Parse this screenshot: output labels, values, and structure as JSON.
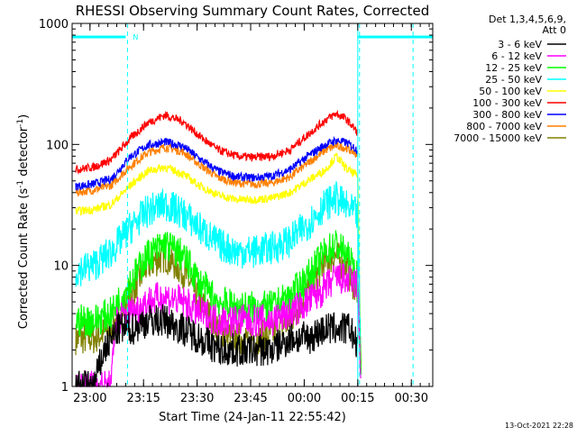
{
  "chart_data": {
    "type": "line",
    "title": "RHESSI Observing Summary Count Rates, Corrected",
    "xlabel": "Start Time (24-Jan-11 22:55:42)",
    "ylabel": "Corrected Count Rate (s",
    "ylabel_sup1": "-1",
    "ylabel_mid": " detector",
    "ylabel_sup2": "-1",
    "ylabel_end": ")",
    "yscale": "log",
    "ylim": [
      1,
      1000
    ],
    "xlim_minutes_after_2255": [
      0,
      101
    ],
    "x_ticks": [
      {
        "label": "23:00",
        "minutes": 5
      },
      {
        "label": "23:15",
        "minutes": 20
      },
      {
        "label": "23:30",
        "minutes": 35
      },
      {
        "label": "23:45",
        "minutes": 50
      },
      {
        "label": "00:00",
        "minutes": 65
      },
      {
        "label": "00:15",
        "minutes": 80
      },
      {
        "label": "00:30",
        "minutes": 95
      }
    ],
    "y_ticks": [
      {
        "label": "1",
        "value": 1
      },
      {
        "label": "10",
        "value": 10
      },
      {
        "label": "100",
        "value": 100
      },
      {
        "label": "1000",
        "value": 1000
      }
    ],
    "legend_header": [
      "Det 1,3,4,5,6,9,",
      "Att 0"
    ],
    "footer_date": "13-Oct-2021 22:28",
    "night_marker_label": "N",
    "night_bars": [
      [
        0,
        15
      ],
      [
        80,
        101
      ]
    ],
    "dashed_lines_minutes": [
      15.5,
      80.5,
      95.5
    ],
    "series": [
      {
        "name": "3 - 6 keV",
        "color": "#000000",
        "values_at": [
          [
            1,
            1
          ],
          [
            6,
            1
          ],
          [
            9,
            2
          ],
          [
            13,
            3
          ],
          [
            17,
            3
          ],
          [
            21,
            3.5
          ],
          [
            26,
            3.5
          ],
          [
            31,
            3
          ],
          [
            36,
            2.5
          ],
          [
            41,
            2
          ],
          [
            46,
            2
          ],
          [
            51,
            2
          ],
          [
            56,
            2
          ],
          [
            61,
            2.5
          ],
          [
            66,
            2.5
          ],
          [
            71,
            3
          ],
          [
            76,
            3
          ],
          [
            78,
            3
          ],
          [
            80,
            2
          ]
        ]
      },
      {
        "name": "6 - 12 keV",
        "color": "#ff00ff",
        "values_at": [
          [
            1,
            1
          ],
          [
            11,
            1
          ],
          [
            12,
            3.5
          ],
          [
            16,
            4
          ],
          [
            21,
            5
          ],
          [
            26,
            5.5
          ],
          [
            31,
            5
          ],
          [
            36,
            4
          ],
          [
            41,
            3.5
          ],
          [
            46,
            3.5
          ],
          [
            51,
            3.5
          ],
          [
            56,
            3.5
          ],
          [
            61,
            4
          ],
          [
            66,
            5
          ],
          [
            71,
            6.5
          ],
          [
            74,
            8
          ],
          [
            77,
            7.5
          ],
          [
            80,
            7
          ],
          [
            81,
            1
          ]
        ]
      },
      {
        "name": "12 - 25 keV",
        "color": "#00ff00",
        "values_at": [
          [
            1,
            3.5
          ],
          [
            6,
            3.5
          ],
          [
            11,
            4
          ],
          [
            16,
            7
          ],
          [
            21,
            12
          ],
          [
            26,
            15
          ],
          [
            31,
            12
          ],
          [
            36,
            7
          ],
          [
            41,
            5
          ],
          [
            46,
            4.5
          ],
          [
            51,
            4.5
          ],
          [
            56,
            4.5
          ],
          [
            61,
            5.5
          ],
          [
            66,
            8
          ],
          [
            71,
            13
          ],
          [
            74,
            15
          ],
          [
            77,
            12
          ],
          [
            80,
            8
          ],
          [
            81,
            1
          ]
        ]
      },
      {
        "name": "25 - 50 keV",
        "color": "#00ffff",
        "values_at": [
          [
            1,
            9
          ],
          [
            6,
            10
          ],
          [
            11,
            13
          ],
          [
            16,
            20
          ],
          [
            21,
            28
          ],
          [
            26,
            32
          ],
          [
            31,
            27
          ],
          [
            36,
            20
          ],
          [
            41,
            15
          ],
          [
            46,
            13
          ],
          [
            51,
            13
          ],
          [
            56,
            14
          ],
          [
            61,
            16
          ],
          [
            66,
            22
          ],
          [
            71,
            32
          ],
          [
            74,
            36
          ],
          [
            77,
            30
          ],
          [
            80,
            26
          ],
          [
            81,
            1
          ]
        ]
      },
      {
        "name": "50 - 100 keV",
        "color": "#ffff00",
        "values_at": [
          [
            1,
            28
          ],
          [
            6,
            29
          ],
          [
            11,
            32
          ],
          [
            16,
            45
          ],
          [
            21,
            60
          ],
          [
            26,
            65
          ],
          [
            31,
            57
          ],
          [
            36,
            45
          ],
          [
            41,
            38
          ],
          [
            46,
            35
          ],
          [
            51,
            35
          ],
          [
            56,
            36
          ],
          [
            61,
            40
          ],
          [
            66,
            50
          ],
          [
            71,
            62
          ],
          [
            74,
            80
          ],
          [
            77,
            62
          ],
          [
            80,
            55
          ],
          [
            81,
            1
          ]
        ]
      },
      {
        "name": "100 - 300 keV",
        "color": "#ff0000",
        "values_at": [
          [
            1,
            62
          ],
          [
            6,
            65
          ],
          [
            11,
            75
          ],
          [
            16,
            110
          ],
          [
            21,
            150
          ],
          [
            26,
            175
          ],
          [
            31,
            155
          ],
          [
            36,
            115
          ],
          [
            41,
            90
          ],
          [
            46,
            80
          ],
          [
            51,
            78
          ],
          [
            56,
            80
          ],
          [
            61,
            90
          ],
          [
            66,
            120
          ],
          [
            71,
            160
          ],
          [
            74,
            180
          ],
          [
            77,
            160
          ],
          [
            80,
            125
          ]
        ]
      },
      {
        "name": "300 - 800 keV",
        "color": "#0000ff",
        "values_at": [
          [
            1,
            45
          ],
          [
            6,
            47
          ],
          [
            11,
            52
          ],
          [
            16,
            78
          ],
          [
            21,
            98
          ],
          [
            26,
            105
          ],
          [
            31,
            97
          ],
          [
            36,
            75
          ],
          [
            41,
            60
          ],
          [
            46,
            54
          ],
          [
            51,
            53
          ],
          [
            56,
            55
          ],
          [
            61,
            62
          ],
          [
            66,
            80
          ],
          [
            71,
            100
          ],
          [
            74,
            108
          ],
          [
            77,
            103
          ],
          [
            80,
            90
          ]
        ]
      },
      {
        "name": "800 - 7000 keV",
        "color": "#ff8000",
        "values_at": [
          [
            1,
            40
          ],
          [
            6,
            42
          ],
          [
            11,
            46
          ],
          [
            16,
            65
          ],
          [
            21,
            85
          ],
          [
            26,
            95
          ],
          [
            31,
            87
          ],
          [
            36,
            67
          ],
          [
            41,
            53
          ],
          [
            46,
            48
          ],
          [
            51,
            47
          ],
          [
            56,
            48
          ],
          [
            61,
            54
          ],
          [
            66,
            70
          ],
          [
            71,
            90
          ],
          [
            74,
            98
          ],
          [
            77,
            93
          ],
          [
            80,
            82
          ]
        ]
      },
      {
        "name": "7000 - 15000 keV",
        "color": "#808000",
        "values_at": [
          [
            1,
            2.5
          ],
          [
            6,
            2.5
          ],
          [
            11,
            3
          ],
          [
            16,
            5.5
          ],
          [
            21,
            10
          ],
          [
            26,
            12
          ],
          [
            31,
            9
          ],
          [
            36,
            5
          ],
          [
            41,
            3
          ],
          [
            46,
            2.5
          ],
          [
            51,
            2.5
          ],
          [
            56,
            2.7
          ],
          [
            61,
            3.5
          ],
          [
            66,
            6
          ],
          [
            71,
            11
          ],
          [
            74,
            12
          ],
          [
            77,
            9
          ],
          [
            80,
            6
          ],
          [
            81,
            1
          ]
        ]
      }
    ],
    "colors": {
      "night": "#00ffff",
      "axes": "#000000",
      "background": "#ffffff"
    }
  }
}
